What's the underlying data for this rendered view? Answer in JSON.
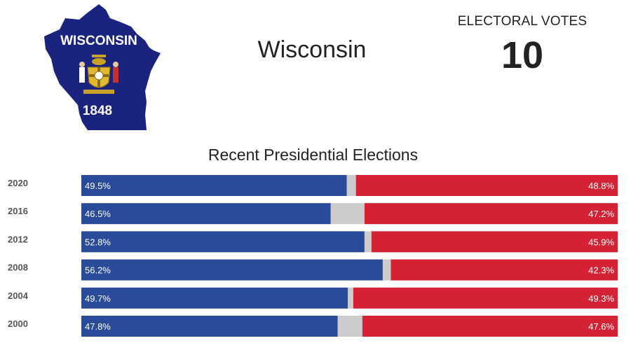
{
  "state": {
    "name": "Wisconsin",
    "flag_title": "WISCONSIN",
    "flag_year": "1848",
    "shape_color": "#1a237e"
  },
  "electoral": {
    "label": "ELECTORAL VOTES",
    "value": "10"
  },
  "chart_data": {
    "type": "bar",
    "orientation": "horizontal",
    "stacked": true,
    "title": "Recent Presidential Elections",
    "categories": [
      "2020",
      "2016",
      "2012",
      "2008",
      "2004",
      "2000"
    ],
    "series": [
      {
        "values": [
          49.5,
          46.5,
          52.8,
          56.2,
          49.7,
          47.8
        ],
        "color": "#2a4a9a"
      },
      {
        "values": [
          1.7,
          6.3,
          1.3,
          1.5,
          1.0,
          4.6
        ],
        "color": "#cccccc"
      },
      {
        "values": [
          48.8,
          47.2,
          45.9,
          42.3,
          49.3,
          47.6
        ],
        "color": "#d42133"
      }
    ],
    "labels_left": [
      "49.5%",
      "46.5%",
      "52.8%",
      "56.2%",
      "49.7%",
      "47.8%"
    ],
    "labels_right": [
      "48.8%",
      "47.2%",
      "45.9%",
      "42.3%",
      "49.3%",
      "47.6%"
    ],
    "xlim": [
      0,
      100
    ]
  }
}
